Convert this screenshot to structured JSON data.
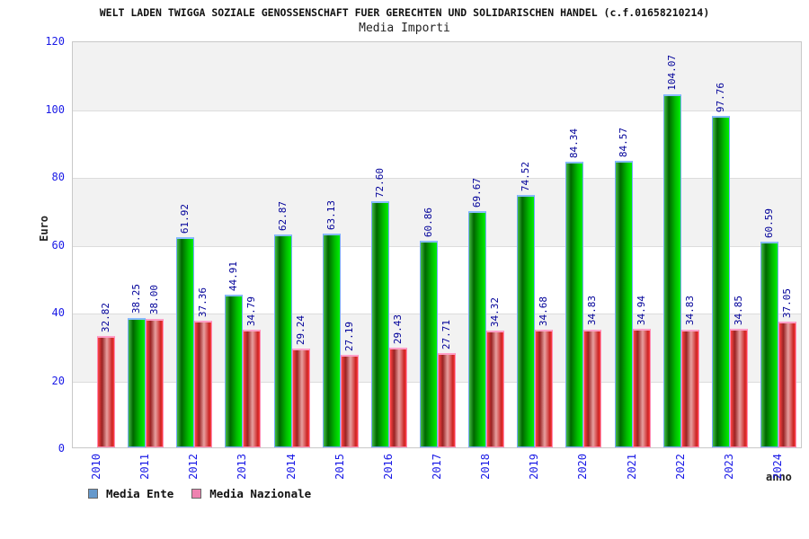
{
  "header": {
    "title": "WELT LADEN TWIGGA SOZIALE GENOSSENSCHAFT FUER GERECHTEN UND SOLIDARISCHEN HANDEL (c.f.01658210214)",
    "subtitle": "Media Importi"
  },
  "chart_data": {
    "type": "bar",
    "title": "Media Importi",
    "xlabel": "anno",
    "ylabel": "Euro",
    "ylim": [
      0,
      120
    ],
    "ytick_step": 20,
    "grid": "horizontal-bands",
    "legend_position": "bottom-left",
    "categories": [
      "2010",
      "2011",
      "2012",
      "2013",
      "2014",
      "2015",
      "2016",
      "2017",
      "2018",
      "2019",
      "2020",
      "2021",
      "2022",
      "2023",
      "2024"
    ],
    "series": [
      {
        "name": "Media Ente",
        "color": "#00cc00",
        "values": [
          null,
          38.25,
          61.92,
          44.91,
          62.87,
          63.13,
          72.6,
          60.86,
          69.67,
          74.52,
          84.34,
          84.57,
          104.07,
          97.76,
          60.59
        ]
      },
      {
        "name": "Media Nazionale",
        "color": "#cc2222",
        "values": [
          32.82,
          38.0,
          37.36,
          34.79,
          29.24,
          27.19,
          29.43,
          27.71,
          34.32,
          34.68,
          34.83,
          34.94,
          34.83,
          34.85,
          37.05
        ]
      }
    ]
  },
  "legend": {
    "items": [
      {
        "label": "Media Ente",
        "swatch": "#6699cc"
      },
      {
        "label": "Media Nazionale",
        "swatch": "#ee82b0"
      }
    ]
  },
  "colors": {
    "tick_label": "#1a1ae6",
    "value_label": "#000099",
    "band_gray": "#f2f2f2",
    "grid_line": "#dcdcdc",
    "bar_ente_border": "#77aaff",
    "bar_naz_border": "#ff8ab4"
  }
}
